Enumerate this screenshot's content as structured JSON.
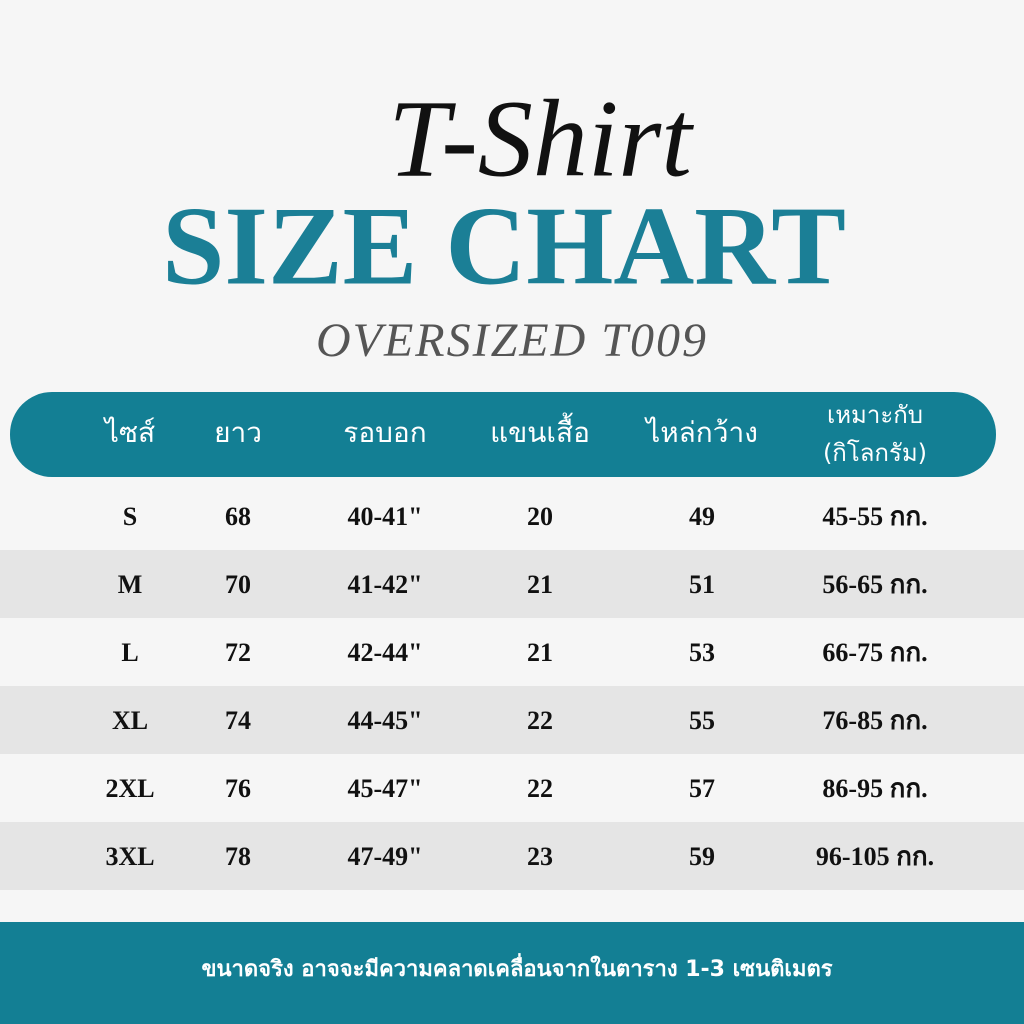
{
  "header": {
    "script_title": "T-Shirt",
    "title": "SIZE CHART",
    "subtitle": "OVERSIZED T009"
  },
  "table": {
    "columns": [
      "ไซส์",
      "ยาว",
      "รอบอก",
      "แขนเสื้อ",
      "ไหล่กว้าง",
      [
        "เหมาะกับ",
        "(กิโลกรัม)"
      ]
    ],
    "rows": [
      [
        "S",
        68,
        "40-41\"",
        20,
        49,
        "45-55 กก."
      ],
      [
        "M",
        70,
        "41-42\"",
        21,
        51,
        "56-65 กก."
      ],
      [
        "L",
        72,
        "42-44\"",
        21,
        53,
        "66-75 กก."
      ],
      [
        "XL",
        74,
        "44-45\"",
        22,
        55,
        "76-85 กก."
      ],
      [
        "2XL",
        76,
        "45-47\"",
        22,
        57,
        "86-95 กก."
      ],
      [
        "3XL",
        78,
        "47-49\"",
        23,
        59,
        "96-105 กก."
      ]
    ]
  },
  "footer": {
    "note": "ขนาดจริง อาจจะมีความคลาดเคลื่อนจากในตาราง 1-3 เซนติเมตร"
  }
}
